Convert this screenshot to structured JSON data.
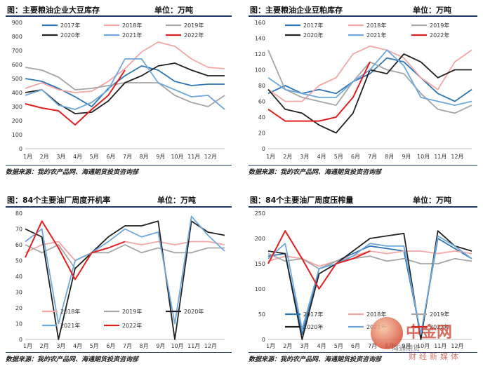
{
  "watermark": {
    "name": "中金网",
    "sub": "财经新媒体",
    "wechat": "海通期货"
  },
  "chart_data": [
    {
      "type": "line",
      "title": "图：主要粮油企业大豆库存",
      "unit": "单位：万吨",
      "source": "数据来源：我的农产品网、海通期货投资咨询部",
      "legend_position": "top",
      "x_labels": [
        "1月",
        "2月",
        "3月",
        "4月",
        "5月",
        "6月",
        "7月",
        "8月",
        "9月",
        "10月",
        "11月",
        "12月"
      ],
      "ylim": [
        0,
        900
      ],
      "yticks": [
        0,
        100,
        200,
        300,
        400,
        500,
        600,
        700,
        800,
        900
      ],
      "series": [
        {
          "name": "2017年",
          "color": "#2e75b6",
          "values": [
            500,
            480,
            430,
            370,
            300,
            430,
            520,
            590,
            560,
            480,
            450,
            460,
            460
          ]
        },
        {
          "name": "2018年",
          "color": "#f4a6a6",
          "values": [
            430,
            470,
            420,
            400,
            410,
            480,
            570,
            690,
            760,
            730,
            640,
            580,
            570
          ]
        },
        {
          "name": "2019年",
          "color": "#a6a6a6",
          "values": [
            580,
            560,
            510,
            420,
            430,
            450,
            470,
            470,
            470,
            380,
            330,
            300,
            380
          ]
        },
        {
          "name": "2020年",
          "color": "#222222",
          "values": [
            400,
            420,
            320,
            250,
            260,
            340,
            470,
            520,
            590,
            610,
            560,
            520,
            520
          ]
        },
        {
          "name": "2021年",
          "color": "#6fa8dc",
          "values": [
            380,
            420,
            310,
            280,
            330,
            420,
            640,
            640,
            470,
            420,
            370,
            380,
            280
          ]
        },
        {
          "name": "2022年",
          "color": "#e02020",
          "values": [
            320,
            290,
            270,
            170,
            280,
            380,
            560,
            null,
            null,
            null,
            null,
            null,
            null
          ]
        }
      ]
    },
    {
      "type": "line",
      "title": "图：主要粮油企业豆粕库存",
      "unit": "单位：万吨",
      "source": "数据来源：我的农产品网、海通期货投资咨询部",
      "legend_position": "top",
      "x_labels": [
        "1月",
        "2月",
        "3月",
        "4月",
        "5月",
        "6月",
        "7月",
        "8月",
        "9月",
        "10月",
        "11月",
        "12月"
      ],
      "ylim": [
        0,
        160
      ],
      "yticks": [
        0,
        20,
        40,
        60,
        80,
        100,
        120,
        140,
        160
      ],
      "series": [
        {
          "name": "2017年",
          "color": "#2e75b6",
          "values": [
            70,
            80,
            70,
            75,
            70,
            85,
            95,
            115,
            110,
            90,
            70,
            60,
            75
          ]
        },
        {
          "name": "2018年",
          "color": "#f4a6a6",
          "values": [
            75,
            60,
            60,
            80,
            90,
            120,
            130,
            125,
            115,
            90,
            75,
            110,
            125
          ]
        },
        {
          "name": "2019年",
          "color": "#a6a6a6",
          "values": [
            125,
            75,
            65,
            60,
            55,
            85,
            110,
            100,
            95,
            70,
            50,
            45,
            55
          ]
        },
        {
          "name": "2020年",
          "color": "#222222",
          "values": [
            75,
            50,
            45,
            30,
            20,
            45,
            100,
            95,
            120,
            110,
            90,
            100,
            100
          ]
        },
        {
          "name": "2021年",
          "color": "#6fa8dc",
          "values": [
            90,
            75,
            70,
            65,
            65,
            85,
            100,
            125,
            105,
            65,
            60,
            55,
            60
          ]
        },
        {
          "name": "2022年",
          "color": "#e02020",
          "values": [
            50,
            35,
            35,
            35,
            40,
            65,
            110,
            null,
            null,
            null,
            null,
            null,
            null
          ]
        }
      ]
    },
    {
      "type": "line",
      "title": "图：84个主要油厂周度开机率",
      "unit": "单位：万吨",
      "source": "数据来源：我的农产品网、海通期货投资咨询部",
      "legend_position": "bottom",
      "x_labels": [
        "1月",
        "2月",
        "3月",
        "4月",
        "5月",
        "6月",
        "7月",
        "8月",
        "9月",
        "10月",
        "11月",
        "12月"
      ],
      "ylim": [
        0,
        80
      ],
      "yticks": [
        0,
        10,
        20,
        30,
        40,
        50,
        60,
        70,
        80
      ],
      "series": [
        {
          "name": "2018年",
          "color": "#f4a6a6",
          "values": [
            55,
            60,
            62,
            50,
            55,
            58,
            62,
            60,
            62,
            60,
            62,
            62,
            60
          ]
        },
        {
          "name": "2019年",
          "color": "#a6a6a6",
          "values": [
            60,
            55,
            60,
            45,
            55,
            55,
            60,
            55,
            58,
            55,
            55,
            58,
            58
          ]
        },
        {
          "name": "2020年",
          "color": "#222222",
          "values": [
            70,
            65,
            0,
            45,
            55,
            65,
            72,
            72,
            75,
            0,
            75,
            68,
            66
          ]
        },
        {
          "name": "2021年",
          "color": "#6fa8dc",
          "values": [
            62,
            70,
            10,
            50,
            55,
            62,
            70,
            65,
            68,
            10,
            78,
            66,
            56
          ]
        },
        {
          "name": "2022年",
          "color": "#e02020",
          "values": [
            52,
            75,
            58,
            38,
            55,
            58,
            62,
            null,
            null,
            null,
            null,
            null,
            null
          ]
        }
      ]
    },
    {
      "type": "line",
      "title": "图：84个主要油厂周度压榨量",
      "unit": "单位：万吨",
      "source": "数据来源：我的农产品网、海通期货投资咨询部",
      "legend_position": "bottom",
      "x_labels": [
        "1月",
        "2月",
        "3月",
        "4月",
        "5月",
        "6月",
        "7月",
        "8月",
        "9月",
        "10月",
        "11月",
        "12月"
      ],
      "ylim": [
        0,
        250
      ],
      "yticks": [
        0,
        50,
        100,
        150,
        200,
        250
      ],
      "series": [
        {
          "name": "2017年",
          "color": "#2e75b6",
          "values": [
            165,
            170,
            10,
            140,
            155,
            170,
            185,
            180,
            175,
            10,
            200,
            180,
            160
          ]
        },
        {
          "name": "2018年",
          "color": "#f4a6a6",
          "values": [
            155,
            165,
            160,
            145,
            155,
            165,
            175,
            170,
            175,
            175,
            170,
            175,
            170
          ]
        },
        {
          "name": "2019年",
          "color": "#a6a6a6",
          "values": [
            170,
            155,
            160,
            140,
            155,
            160,
            165,
            155,
            160,
            150,
            150,
            160,
            155
          ]
        },
        {
          "name": "2020年",
          "color": "#222222",
          "values": [
            175,
            170,
            0,
            130,
            150,
            175,
            200,
            205,
            210,
            0,
            215,
            185,
            175
          ]
        },
        {
          "name": "2021年",
          "color": "#6fa8dc",
          "values": [
            160,
            190,
            20,
            140,
            150,
            165,
            190,
            185,
            185,
            10,
            205,
            185,
            160
          ]
        },
        {
          "name": "2022年",
          "color": "#e02020",
          "values": [
            150,
            215,
            160,
            100,
            150,
            160,
            175,
            null,
            null,
            null,
            null,
            null,
            null
          ]
        }
      ]
    }
  ]
}
